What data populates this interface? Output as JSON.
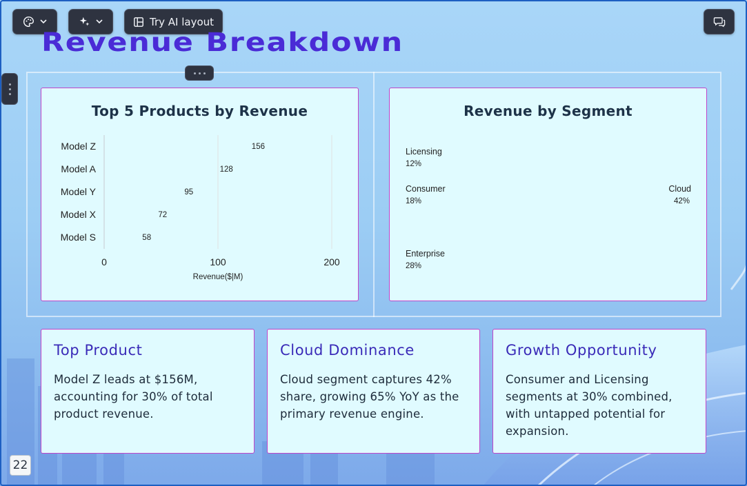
{
  "toolbar": {
    "theme_icon": "palette-icon",
    "ai_icon": "sparkle-icon",
    "ai_layout_label": "Try AI layout",
    "ai_layout_icon": "layout-icon",
    "comments_icon": "chat-icon"
  },
  "slide": {
    "title": "Revenue Breakdown",
    "page_number": "22"
  },
  "bar_card": {
    "title": "Top 5 Products by Revenue"
  },
  "pie_card": {
    "title": "Revenue by Segment"
  },
  "chart_data": [
    {
      "type": "bar",
      "orientation": "horizontal",
      "title": "Top 5 Products by Revenue",
      "categories": [
        "Model Z",
        "Model A",
        "Model Y",
        "Model X",
        "Model S"
      ],
      "values": [
        156,
        128,
        95,
        72,
        58
      ],
      "xlabel": "Revenue($|M)",
      "ylabel": "",
      "xlim": [
        0,
        200
      ],
      "xticks": [
        0,
        100,
        200
      ],
      "grid": true,
      "data_labels": true
    },
    {
      "type": "pie",
      "title": "Revenue by Segment",
      "categories": [
        "Cloud",
        "Enterprise",
        "Consumer",
        "Licensing"
      ],
      "values": [
        42,
        28,
        18,
        12
      ],
      "labels": [
        "42%",
        "28%",
        "18%",
        "12%"
      ]
    }
  ],
  "insights": [
    {
      "title": "Top Product",
      "text": "Model Z leads at $156M, accounting for 30% of total product revenue."
    },
    {
      "title": "Cloud Dominance",
      "text": "Cloud segment captures 42% share, growing 65% YoY as the primary revenue engine."
    },
    {
      "title": "Growth Opportunity",
      "text": "Consumer and Licensing segments at 30% combined, with untapped potential for expansion."
    }
  ],
  "colors": {
    "title": "#4a2bd6",
    "card_border": "#c044c8",
    "card_bg": "#e0fbff",
    "insight_title": "#3a2bb8"
  }
}
